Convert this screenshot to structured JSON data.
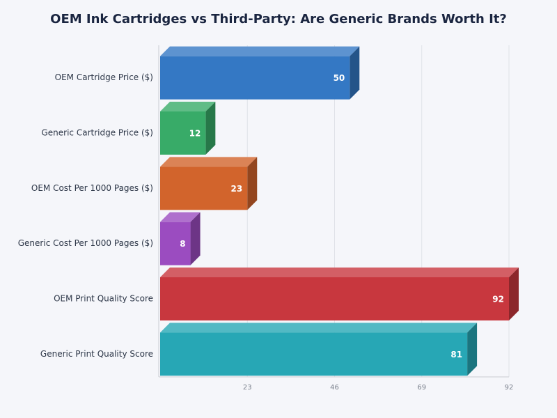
{
  "chart_data": {
    "type": "bar3d-horizontal",
    "title": "OEM Ink Cartridges vs Third-Party: Are Generic Brands Worth It?",
    "categories": [
      "OEM Cartridge Price ($)",
      "Generic Cartridge Price ($)",
      "OEM Cost Per 1000 Pages ($)",
      "Generic Cost Per 1000 Pages ($)",
      "OEM Print Quality Score",
      "Generic Print Quality Score"
    ],
    "values": [
      50,
      12,
      23,
      8,
      92,
      81
    ],
    "colors": [
      "#3478c4",
      "#38ab68",
      "#d2642c",
      "#9b4cc0",
      "#c8373e",
      "#27a7b5"
    ],
    "xlim": [
      0,
      92
    ],
    "xticks": [
      23,
      46,
      69,
      92
    ],
    "grid": true
  }
}
